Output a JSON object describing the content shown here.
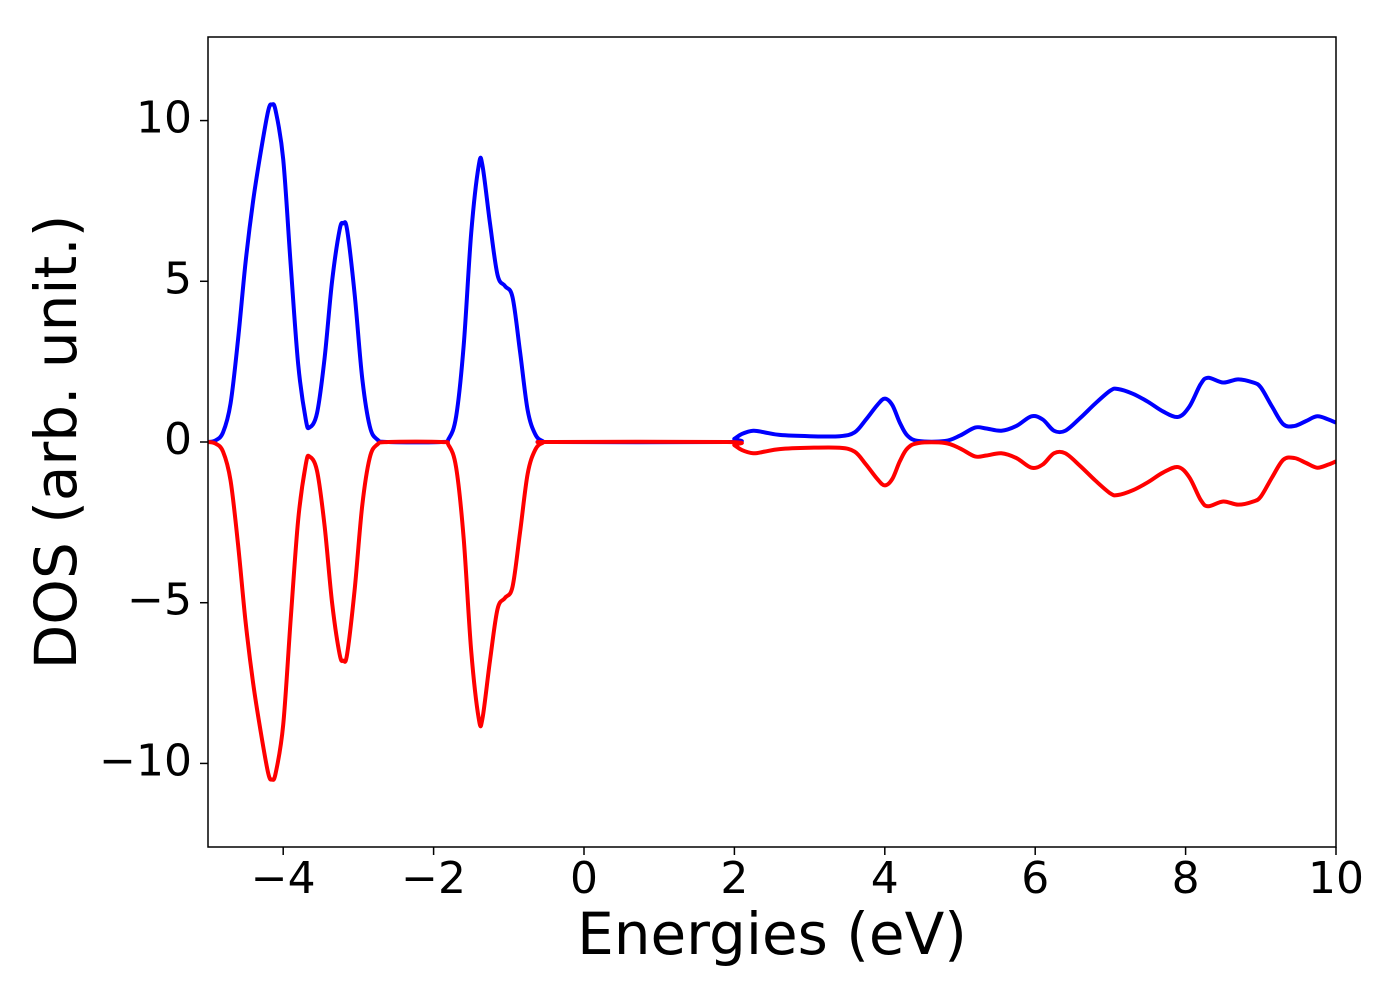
{
  "chart_data": {
    "type": "line",
    "xlabel": "Energies (eV)",
    "ylabel": "DOS (arb. unit.)",
    "x": [
      -5,
      -4.9,
      -4.8,
      -4.7,
      -4.6,
      -4.5,
      -4.4,
      -4.3,
      -4.2,
      -4.15,
      -4.1,
      -4.0,
      -3.9,
      -3.8,
      -3.7,
      -3.65,
      -3.55,
      -3.45,
      -3.35,
      -3.25,
      -3.2,
      -3.15,
      -3.05,
      -2.95,
      -2.85,
      -2.75,
      -2.6,
      -1.9,
      -1.8,
      -1.7,
      -1.6,
      -1.5,
      -1.4,
      -1.35,
      -1.25,
      -1.15,
      -1.05,
      -0.95,
      -0.85,
      -0.75,
      -0.65,
      -0.55,
      -0.4,
      1.9,
      2.0,
      2.1,
      2.25,
      2.4,
      2.6,
      3.0,
      3.4,
      3.6,
      3.75,
      3.9,
      4.0,
      4.1,
      4.2,
      4.3,
      4.45,
      4.8,
      5.0,
      5.2,
      5.35,
      5.55,
      5.75,
      5.95,
      6.1,
      6.25,
      6.4,
      6.6,
      6.8,
      7.0,
      7.1,
      7.3,
      7.5,
      7.7,
      7.9,
      8.05,
      8.2,
      8.3,
      8.5,
      8.7,
      8.9,
      9.0,
      9.15,
      9.3,
      9.45,
      9.6,
      9.75,
      9.9,
      10
    ],
    "series": [
      {
        "color": "#0000ff",
        "values": [
          0,
          0.05,
          0.3,
          1.2,
          3.2,
          5.6,
          7.5,
          9.0,
          10.3,
          10.5,
          10.3,
          8.8,
          5.5,
          2.4,
          0.7,
          0.45,
          0.9,
          2.6,
          5.0,
          6.6,
          6.8,
          6.6,
          4.6,
          2.0,
          0.5,
          0.08,
          0,
          0,
          0.1,
          0.8,
          3.0,
          6.5,
          8.6,
          8.6,
          6.8,
          5.2,
          4.85,
          4.5,
          2.8,
          1.0,
          0.25,
          0.03,
          0,
          0,
          0.1,
          0.25,
          0.35,
          0.3,
          0.22,
          0.18,
          0.18,
          0.3,
          0.7,
          1.15,
          1.35,
          1.15,
          0.6,
          0.2,
          0.03,
          0.03,
          0.2,
          0.45,
          0.42,
          0.35,
          0.5,
          0.8,
          0.7,
          0.35,
          0.35,
          0.75,
          1.2,
          1.6,
          1.65,
          1.5,
          1.25,
          0.95,
          0.78,
          1.1,
          1.8,
          2.0,
          1.85,
          1.95,
          1.85,
          1.7,
          1.1,
          0.55,
          0.5,
          0.65,
          0.8,
          0.7,
          0.6
        ]
      },
      {
        "color": "#ff0000",
        "values": [
          0,
          -0.05,
          -0.3,
          -1.2,
          -3.2,
          -5.6,
          -7.5,
          -9.0,
          -10.3,
          -10.5,
          -10.3,
          -8.8,
          -5.5,
          -2.4,
          -0.7,
          -0.45,
          -0.9,
          -2.6,
          -5.0,
          -6.6,
          -6.8,
          -6.6,
          -4.6,
          -2.0,
          -0.5,
          -0.08,
          0,
          0,
          -0.1,
          -0.8,
          -3.0,
          -6.5,
          -8.6,
          -8.6,
          -6.8,
          -5.2,
          -4.85,
          -4.5,
          -2.8,
          -1.0,
          -0.25,
          -0.03,
          0,
          0,
          -0.1,
          -0.25,
          -0.35,
          -0.3,
          -0.22,
          -0.18,
          -0.18,
          -0.3,
          -0.7,
          -1.15,
          -1.35,
          -1.15,
          -0.6,
          -0.2,
          -0.03,
          -0.03,
          -0.2,
          -0.45,
          -0.42,
          -0.35,
          -0.5,
          -0.8,
          -0.7,
          -0.35,
          -0.35,
          -0.75,
          -1.2,
          -1.6,
          -1.65,
          -1.5,
          -1.25,
          -0.95,
          -0.78,
          -1.1,
          -1.8,
          -2.0,
          -1.85,
          -1.95,
          -1.85,
          -1.7,
          -1.1,
          -0.55,
          -0.5,
          -0.65,
          -0.8,
          -0.7,
          -0.6
        ]
      }
    ],
    "xlim": [
      -5,
      10
    ],
    "xticks": [
      {
        "value": -4,
        "label": "−4"
      },
      {
        "value": -2,
        "label": "−2"
      },
      0,
      2,
      4,
      6,
      8,
      10
    ],
    "ylim": [
      -12.6,
      12.6
    ],
    "yticks": [
      {
        "value": -10,
        "label": "−10"
      },
      {
        "value": -5,
        "label": "−5"
      },
      0,
      5,
      10
    ]
  }
}
